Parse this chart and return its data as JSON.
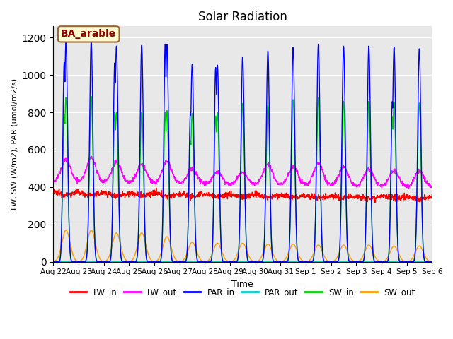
{
  "title": "Solar Radiation",
  "xlabel": "Time",
  "ylabel": "LW, SW (W/m2), PAR (umol/m2/s)",
  "ylim": [
    0,
    1260
  ],
  "yticks": [
    0,
    200,
    400,
    600,
    800,
    1000,
    1200
  ],
  "annotation_text": "BA_arable",
  "annotation_color": "#8B0000",
  "annotation_bg": "#FFFACD",
  "annotation_border": "#996633",
  "n_days": 15,
  "n_points_per_day": 96,
  "background_color": "#e8e8e8",
  "series": {
    "LW_in": {
      "color": "#ff0000",
      "lw": 1.0
    },
    "LW_out": {
      "color": "#ff00ff",
      "lw": 1.0
    },
    "PAR_in": {
      "color": "#0000ff",
      "lw": 1.0
    },
    "PAR_out": {
      "color": "#00cccc",
      "lw": 1.0
    },
    "SW_in": {
      "color": "#00cc00",
      "lw": 1.0
    },
    "SW_out": {
      "color": "#ff9900",
      "lw": 1.0
    }
  },
  "xtick_labels": [
    "Aug 22",
    "Aug 23",
    "Aug 24",
    "Aug 25",
    "Aug 26",
    "Aug 27",
    "Aug 28",
    "Aug 29",
    "Aug 30",
    "Aug 31",
    "Sep 1",
    "Sep 2",
    "Sep 3",
    "Sep 4",
    "Sep 5",
    "Sep 6"
  ],
  "legend_order": [
    "LW_in",
    "LW_out",
    "PAR_in",
    "PAR_out",
    "SW_in",
    "SW_out"
  ]
}
